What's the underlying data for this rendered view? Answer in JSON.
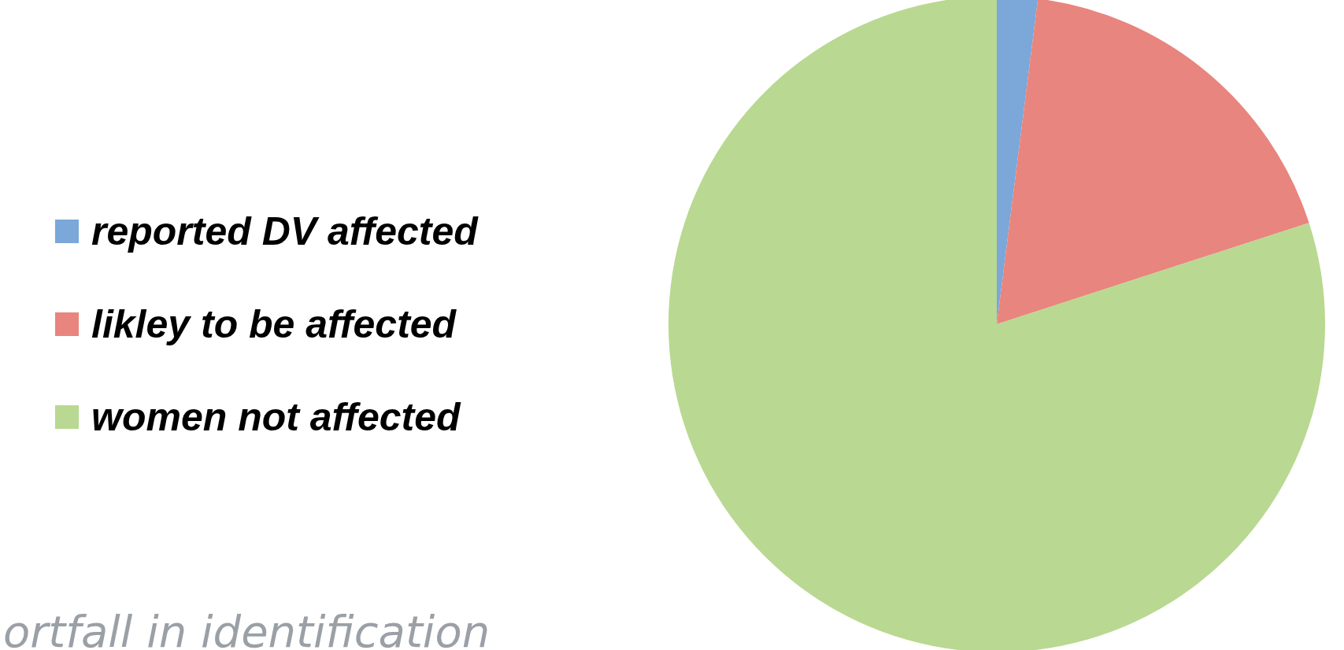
{
  "chart_data": {
    "type": "pie",
    "categories": [
      "reported DV affected",
      "likley to be affected",
      "women not affected"
    ],
    "values": [
      2,
      18,
      80
    ],
    "colors": [
      "#7ba7d9",
      "#e8857e",
      "#b9d891"
    ],
    "legend": "left",
    "annotations": [
      "ortfall in identification"
    ]
  }
}
